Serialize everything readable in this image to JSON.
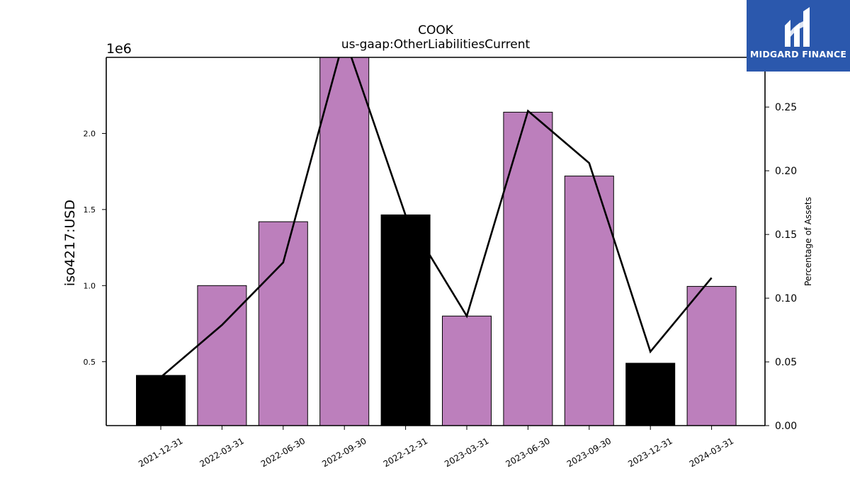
{
  "chart_data": {
    "type": "bar",
    "title": "COOK",
    "subtitle": "us-gaap:OtherLiabilitiesCurrent",
    "ylabel": "iso4217:USD",
    "y2label": "Percentage of Assets",
    "y_offset_label": "1e6",
    "categories": [
      "2021-12-31",
      "2022-03-31",
      "2022-06-30",
      "2022-09-30",
      "2022-12-31",
      "2023-03-31",
      "2023-06-30",
      "2023-09-30",
      "2023-12-31",
      "2024-03-31"
    ],
    "values": [
      410000,
      1000000,
      1420000,
      2500000,
      1465000,
      800000,
      2140000,
      1720000,
      490000,
      995000
    ],
    "bar_colors": [
      "#000000",
      "#bc7fbc",
      "#bc7fbc",
      "#bc7fbc",
      "#000000",
      "#bc7fbc",
      "#bc7fbc",
      "#bc7fbc",
      "#000000",
      "#bc7fbc"
    ],
    "line_series": {
      "name": "Percentage of Assets",
      "values": [
        0.038,
        0.079,
        0.128,
        0.305,
        0.165,
        0.086,
        0.247,
        0.206,
        0.058,
        0.116
      ],
      "color": "#000000"
    },
    "ylim": [
      80000,
      2500000
    ],
    "y2lim": [
      0,
      0.289
    ],
    "yticks": [
      500000,
      1000000,
      1500000,
      2000000
    ],
    "ytick_labels": [
      "0.5",
      "1.0",
      "1.5",
      "2.0"
    ],
    "y2ticks": [
      0,
      0.05,
      0.1,
      0.15,
      0.2,
      0.25
    ],
    "y2tick_labels": [
      "0.00",
      "0.05",
      "0.10",
      "0.15",
      "0.20",
      "0.25"
    ],
    "grid": false
  },
  "logo": {
    "text": "MIDGARD FINANCE",
    "background": "#2b58ad"
  }
}
